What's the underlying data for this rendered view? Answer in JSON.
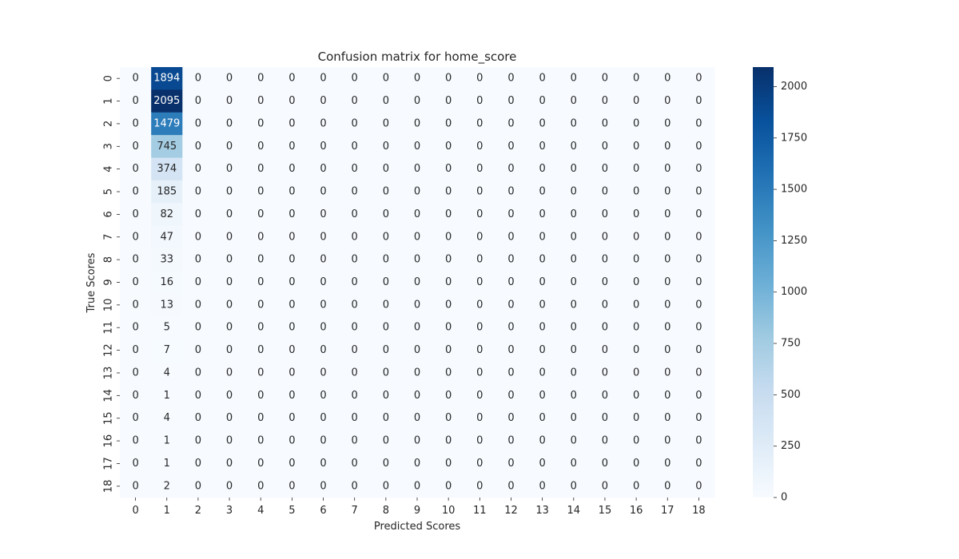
{
  "chart_data": {
    "type": "heatmap",
    "title": "Confusion matrix for home_score",
    "xlabel": "Predicted Scores",
    "ylabel": "True Scores",
    "x_categories": [
      "0",
      "1",
      "2",
      "3",
      "4",
      "5",
      "6",
      "7",
      "8",
      "9",
      "10",
      "11",
      "12",
      "13",
      "14",
      "15",
      "16",
      "17",
      "18"
    ],
    "y_categories": [
      "0",
      "1",
      "2",
      "3",
      "4",
      "5",
      "6",
      "7",
      "8",
      "9",
      "10",
      "11",
      "12",
      "13",
      "14",
      "15",
      "16",
      "17",
      "18"
    ],
    "matrix": [
      [
        0,
        1894,
        0,
        0,
        0,
        0,
        0,
        0,
        0,
        0,
        0,
        0,
        0,
        0,
        0,
        0,
        0,
        0,
        0
      ],
      [
        0,
        2095,
        0,
        0,
        0,
        0,
        0,
        0,
        0,
        0,
        0,
        0,
        0,
        0,
        0,
        0,
        0,
        0,
        0
      ],
      [
        0,
        1479,
        0,
        0,
        0,
        0,
        0,
        0,
        0,
        0,
        0,
        0,
        0,
        0,
        0,
        0,
        0,
        0,
        0
      ],
      [
        0,
        745,
        0,
        0,
        0,
        0,
        0,
        0,
        0,
        0,
        0,
        0,
        0,
        0,
        0,
        0,
        0,
        0,
        0
      ],
      [
        0,
        374,
        0,
        0,
        0,
        0,
        0,
        0,
        0,
        0,
        0,
        0,
        0,
        0,
        0,
        0,
        0,
        0,
        0
      ],
      [
        0,
        185,
        0,
        0,
        0,
        0,
        0,
        0,
        0,
        0,
        0,
        0,
        0,
        0,
        0,
        0,
        0,
        0,
        0
      ],
      [
        0,
        82,
        0,
        0,
        0,
        0,
        0,
        0,
        0,
        0,
        0,
        0,
        0,
        0,
        0,
        0,
        0,
        0,
        0
      ],
      [
        0,
        47,
        0,
        0,
        0,
        0,
        0,
        0,
        0,
        0,
        0,
        0,
        0,
        0,
        0,
        0,
        0,
        0,
        0
      ],
      [
        0,
        33,
        0,
        0,
        0,
        0,
        0,
        0,
        0,
        0,
        0,
        0,
        0,
        0,
        0,
        0,
        0,
        0,
        0
      ],
      [
        0,
        16,
        0,
        0,
        0,
        0,
        0,
        0,
        0,
        0,
        0,
        0,
        0,
        0,
        0,
        0,
        0,
        0,
        0
      ],
      [
        0,
        13,
        0,
        0,
        0,
        0,
        0,
        0,
        0,
        0,
        0,
        0,
        0,
        0,
        0,
        0,
        0,
        0,
        0
      ],
      [
        0,
        5,
        0,
        0,
        0,
        0,
        0,
        0,
        0,
        0,
        0,
        0,
        0,
        0,
        0,
        0,
        0,
        0,
        0
      ],
      [
        0,
        7,
        0,
        0,
        0,
        0,
        0,
        0,
        0,
        0,
        0,
        0,
        0,
        0,
        0,
        0,
        0,
        0,
        0
      ],
      [
        0,
        4,
        0,
        0,
        0,
        0,
        0,
        0,
        0,
        0,
        0,
        0,
        0,
        0,
        0,
        0,
        0,
        0,
        0
      ],
      [
        0,
        1,
        0,
        0,
        0,
        0,
        0,
        0,
        0,
        0,
        0,
        0,
        0,
        0,
        0,
        0,
        0,
        0,
        0
      ],
      [
        0,
        4,
        0,
        0,
        0,
        0,
        0,
        0,
        0,
        0,
        0,
        0,
        0,
        0,
        0,
        0,
        0,
        0,
        0
      ],
      [
        0,
        1,
        0,
        0,
        0,
        0,
        0,
        0,
        0,
        0,
        0,
        0,
        0,
        0,
        0,
        0,
        0,
        0,
        0
      ],
      [
        0,
        1,
        0,
        0,
        0,
        0,
        0,
        0,
        0,
        0,
        0,
        0,
        0,
        0,
        0,
        0,
        0,
        0,
        0
      ],
      [
        0,
        2,
        0,
        0,
        0,
        0,
        0,
        0,
        0,
        0,
        0,
        0,
        0,
        0,
        0,
        0,
        0,
        0,
        0
      ]
    ],
    "colorbar": {
      "colormap": "Blues",
      "range": [
        0,
        2095
      ],
      "ticks": [
        0,
        250,
        500,
        750,
        1000,
        1250,
        1500,
        1750,
        2000
      ]
    },
    "grid": false
  }
}
